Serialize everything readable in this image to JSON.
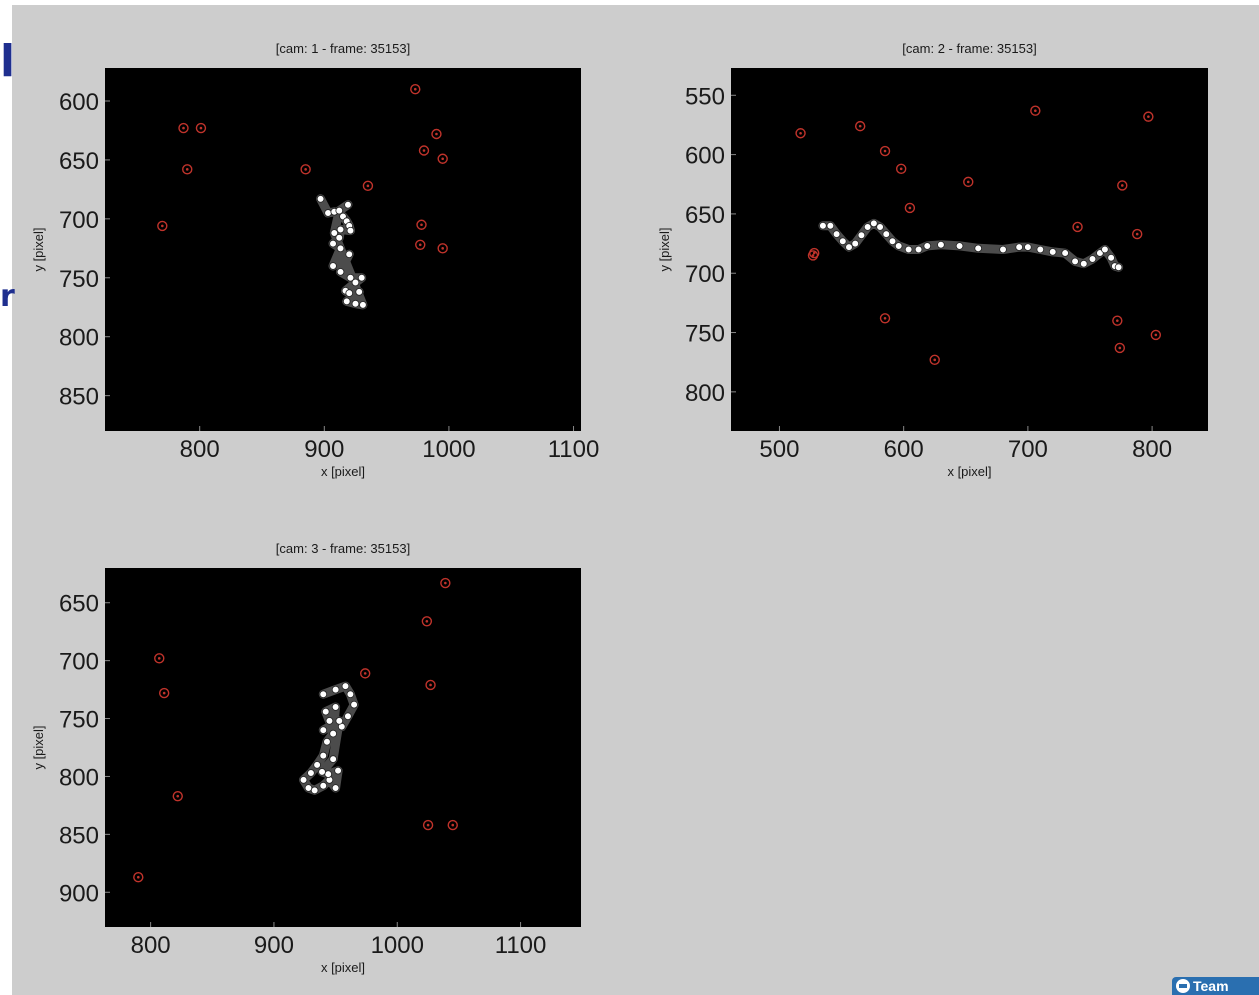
{
  "chart_data": [
    {
      "type": "scatter",
      "title": "[cam: 1 - frame: 35153]",
      "xlabel": "x [pixel]",
      "ylabel": "y [pixel]",
      "xlim": [
        724,
        1106
      ],
      "ylim": [
        572,
        880
      ],
      "y_reversed": true,
      "xticks": [
        800,
        900,
        1000,
        1100
      ],
      "yticks": [
        600,
        650,
        700,
        750,
        800,
        850
      ],
      "grid": false,
      "background": "#000000",
      "series": [
        {
          "marker": "red-circled-dot",
          "color": "#c0332b",
          "points": [
            [
              787,
              623
            ],
            [
              801,
              623
            ],
            [
              790,
              658
            ],
            [
              770,
              706
            ],
            [
              885,
              658
            ],
            [
              935,
              672
            ],
            [
              973,
              590
            ],
            [
              990,
              628
            ],
            [
              980,
              642
            ],
            [
              995,
              649
            ],
            [
              978,
              705
            ],
            [
              977,
              722
            ],
            [
              995,
              725
            ]
          ]
        },
        {
          "marker": "white-dot",
          "color": "#ffffff",
          "points": [
            [
              897,
              683
            ],
            [
              903,
              695
            ],
            [
              908,
              694
            ],
            [
              915,
              698
            ],
            [
              918,
              702
            ],
            [
              920,
              706
            ],
            [
              921,
              710
            ],
            [
              913,
              709
            ],
            [
              912,
              716
            ],
            [
              907,
              721
            ],
            [
              913,
              725
            ],
            [
              907,
              740
            ],
            [
              920,
              730
            ],
            [
              913,
              745
            ],
            [
              921,
              750
            ],
            [
              930,
              750
            ],
            [
              925,
              754
            ],
            [
              917,
              761
            ],
            [
              920,
              763
            ],
            [
              928,
              762
            ],
            [
              918,
              770
            ],
            [
              925,
              772
            ],
            [
              931,
              773
            ],
            [
              908,
              712
            ],
            [
              912,
              693
            ],
            [
              919,
              688
            ]
          ]
        }
      ]
    },
    {
      "type": "scatter",
      "title": "[cam: 2 - frame: 35153]",
      "xlabel": "x [pixel]",
      "ylabel": "y [pixel]",
      "xlim": [
        461,
        845
      ],
      "ylim": [
        527,
        833
      ],
      "y_reversed": true,
      "xticks": [
        500,
        600,
        700,
        800
      ],
      "yticks": [
        550,
        600,
        650,
        700,
        750,
        800
      ],
      "grid": false,
      "background": "#000000",
      "series": [
        {
          "marker": "red-circled-dot",
          "color": "#c0332b",
          "points": [
            [
              517,
              582
            ],
            [
              565,
              576
            ],
            [
              585,
              597
            ],
            [
              598,
              612
            ],
            [
              605,
              645
            ],
            [
              652,
              623
            ],
            [
              706,
              563
            ],
            [
              797,
              568
            ],
            [
              776,
              626
            ],
            [
              740,
              661
            ],
            [
              788,
              667
            ],
            [
              528,
              683
            ],
            [
              527,
              685
            ],
            [
              585,
              738
            ],
            [
              625,
              773
            ],
            [
              772,
              740
            ],
            [
              774,
              763
            ],
            [
              803,
              752
            ]
          ]
        },
        {
          "marker": "white-dot",
          "color": "#ffffff",
          "points": [
            [
              535,
              660
            ],
            [
              541,
              660
            ],
            [
              546,
              667
            ],
            [
              551,
              673
            ],
            [
              556,
              678
            ],
            [
              561,
              675
            ],
            [
              566,
              668
            ],
            [
              571,
              661
            ],
            [
              576,
              658
            ],
            [
              581,
              661
            ],
            [
              586,
              667
            ],
            [
              591,
              673
            ],
            [
              596,
              677
            ],
            [
              604,
              680
            ],
            [
              612,
              680
            ],
            [
              619,
              677
            ],
            [
              630,
              676
            ],
            [
              645,
              677
            ],
            [
              660,
              679
            ],
            [
              680,
              680
            ],
            [
              693,
              678
            ],
            [
              700,
              678
            ],
            [
              710,
              680
            ],
            [
              720,
              682
            ],
            [
              730,
              683
            ],
            [
              738,
              690
            ],
            [
              745,
              692
            ],
            [
              752,
              688
            ],
            [
              758,
              683
            ],
            [
              762,
              680
            ],
            [
              767,
              687
            ],
            [
              770,
              694
            ],
            [
              773,
              695
            ]
          ]
        }
      ]
    },
    {
      "type": "scatter",
      "title": "[cam: 3 - frame: 35153]",
      "xlabel": "x [pixel]",
      "ylabel": "y [pixel]",
      "xlim": [
        763,
        1149
      ],
      "ylim": [
        620,
        930
      ],
      "y_reversed": true,
      "xticks": [
        800,
        900,
        1000,
        1100
      ],
      "yticks": [
        650,
        700,
        750,
        800,
        850,
        900
      ],
      "grid": false,
      "background": "#000000",
      "series": [
        {
          "marker": "red-circled-dot",
          "color": "#c0332b",
          "points": [
            [
              807,
              698
            ],
            [
              811,
              728
            ],
            [
              822,
              817
            ],
            [
              790,
              887
            ],
            [
              974,
              711
            ],
            [
              1039,
              633
            ],
            [
              1024,
              666
            ],
            [
              1027,
              721
            ],
            [
              1025,
              842
            ],
            [
              1045,
              842
            ]
          ]
        },
        {
          "marker": "white-dot",
          "color": "#ffffff",
          "points": [
            [
              940,
              729
            ],
            [
              950,
              725
            ],
            [
              958,
              722
            ],
            [
              962,
              729
            ],
            [
              965,
              738
            ],
            [
              960,
              748
            ],
            [
              955,
              757
            ],
            [
              945,
              752
            ],
            [
              942,
              744
            ],
            [
              950,
              740
            ],
            [
              948,
              763
            ],
            [
              943,
              770
            ],
            [
              940,
              782
            ],
            [
              935,
              790
            ],
            [
              930,
              797
            ],
            [
              924,
              803
            ],
            [
              928,
              810
            ],
            [
              933,
              812
            ],
            [
              940,
              808
            ],
            [
              945,
              803
            ],
            [
              950,
              810
            ],
            [
              952,
              795
            ],
            [
              944,
              798
            ],
            [
              939,
              796
            ],
            [
              948,
              785
            ],
            [
              953,
              752
            ],
            [
              940,
              760
            ]
          ]
        }
      ]
    }
  ],
  "edge_glyphs": [
    "l",
    "r"
  ],
  "taskbar_badge": "Team"
}
